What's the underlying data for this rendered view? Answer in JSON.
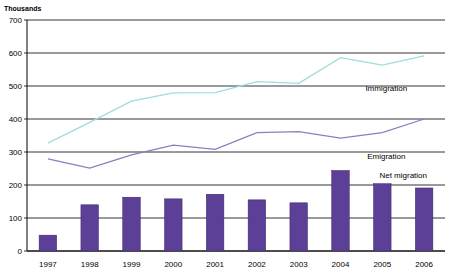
{
  "chart_data": {
    "type": "bar",
    "y_label": "Thousands",
    "categories": [
      "1997",
      "1998",
      "1999",
      "2000",
      "2001",
      "2002",
      "2003",
      "2004",
      "2005",
      "2006"
    ],
    "series": [
      {
        "name": "Net migration",
        "type": "bar",
        "color": "#5c3f97",
        "values": [
          48,
          140,
          163,
          158,
          172,
          155,
          146,
          244,
          204,
          191
        ]
      },
      {
        "name": "Immigration",
        "type": "line",
        "color": "#9edddd",
        "values": [
          327,
          390,
          454,
          479,
          480,
          513,
          508,
          586,
          563,
          591
        ]
      },
      {
        "name": "Emigration",
        "type": "line",
        "color": "#8a7ebd",
        "values": [
          279,
          251,
          291,
          321,
          308,
          359,
          362,
          342,
          359,
          400
        ]
      }
    ],
    "ylim": [
      0,
      700
    ],
    "yticks": [
      0,
      100,
      200,
      300,
      400,
      500,
      600,
      700
    ],
    "grid": true
  }
}
